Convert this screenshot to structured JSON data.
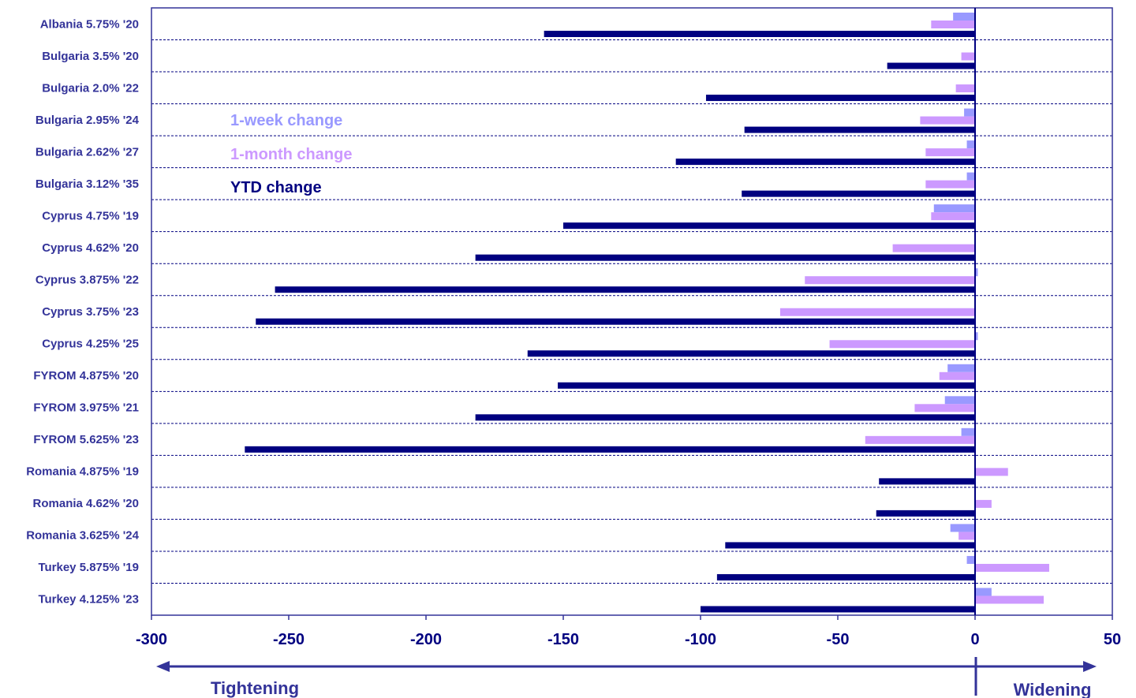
{
  "chart_data": {
    "type": "bar",
    "orientation": "horizontal",
    "categories": [
      "Albania 5.75% '20",
      "Bulgaria 3.5% '20",
      "Bulgaria 2.0% '22",
      "Bulgaria 2.95% '24",
      "Bulgaria 2.62% '27",
      "Bulgaria 3.12% '35",
      "Cyprus 4.75% '19",
      "Cyprus 4.62% '20",
      "Cyprus 3.875% '22",
      "Cyprus 3.75% '23",
      "Cyprus 4.25% '25",
      "FYROM 4.875% '20",
      "FYROM 3.975% '21",
      "FYROM 5.625% '23",
      "Romania 4.875% '19",
      "Romania 4.62% '20",
      "Romania 3.625% '24",
      "Turkey 5.875% '19",
      "Turkey 4.125% '23"
    ],
    "series": [
      {
        "name": "1-week change",
        "color": "#9999ff",
        "values": [
          -8,
          0,
          0,
          -4,
          -3,
          -3,
          -15,
          0,
          1,
          0,
          1,
          -10,
          -11,
          -5,
          0,
          0,
          -9,
          -3,
          6
        ]
      },
      {
        "name": "1-month change",
        "color": "#cc99ff",
        "values": [
          -16,
          -5,
          -7,
          -20,
          -18,
          -18,
          -16,
          -30,
          -62,
          -71,
          -53,
          -13,
          -22,
          -40,
          12,
          6,
          -6,
          27,
          25
        ]
      },
      {
        "name": "YTD change",
        "color": "#000080",
        "values": [
          -157,
          -32,
          -98,
          -84,
          -109,
          -85,
          -150,
          -182,
          -255,
          -262,
          -163,
          -152,
          -182,
          -266,
          -35,
          -36,
          -91,
          -94,
          -100
        ]
      }
    ],
    "xlim": [
      -300,
      50
    ],
    "xticks": [
      "-300",
      "-250",
      "-200",
      "-150",
      "-100",
      "-50",
      "0",
      "50"
    ],
    "left_arrow_label": "Tightening",
    "right_arrow_label": "Widening",
    "legend_position": "upper-left inside plot",
    "grid": "horizontal dashed separators between categories"
  },
  "colors": {
    "axis": "#333399",
    "text": "#333399",
    "grid": "#000080"
  }
}
